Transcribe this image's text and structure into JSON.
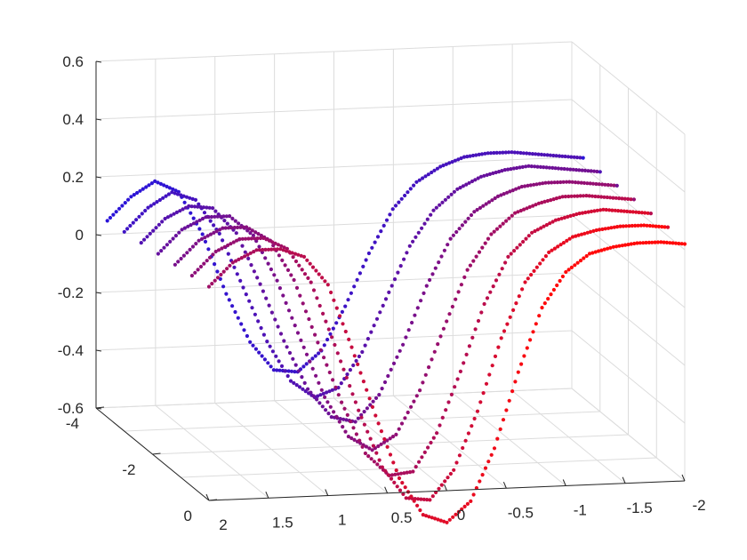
{
  "chart_data": {
    "type": "scatter3d",
    "title": "",
    "xlabel": "",
    "ylabel": "",
    "zlabel": "",
    "xlim": [
      -2,
      2
    ],
    "ylim": [
      -4,
      0
    ],
    "zlim": [
      -0.6,
      0.6
    ],
    "grid": true,
    "legend": "none",
    "colormap": {
      "start": "#2a14d8",
      "end": "#ff0a0a"
    },
    "x_ticks": [
      "2",
      "1.5",
      "1",
      "0.5",
      "0",
      "-0.5",
      "-1",
      "-1.5",
      "-2"
    ],
    "y_ticks": [
      "-4",
      "-2",
      "0"
    ],
    "z_ticks": [
      "0.6",
      "0.4",
      "0.2",
      "0",
      "-0.2",
      "-0.4",
      "-0.6"
    ],
    "series": [
      {
        "y": -3.6,
        "x": [
          2.0,
          1.8,
          1.6,
          1.4,
          1.2,
          1.0,
          0.8,
          0.6,
          0.4,
          0.2,
          0.0,
          -0.2,
          -0.4,
          -0.6,
          -0.8,
          -1.0,
          -1.2,
          -1.4,
          -1.6,
          -1.8,
          -2.0
        ],
        "z": [
          0.08,
          0.16,
          0.21,
          0.17,
          0.02,
          -0.19,
          -0.36,
          -0.46,
          -0.47,
          -0.4,
          -0.25,
          -0.07,
          0.08,
          0.17,
          0.22,
          0.25,
          0.26,
          0.26,
          0.25,
          0.24,
          0.23
        ]
      },
      {
        "y": -3.0,
        "x": [
          2.0,
          1.8,
          1.6,
          1.4,
          1.2,
          1.0,
          0.8,
          0.6,
          0.4,
          0.2,
          0.0,
          -0.2,
          -0.4,
          -0.6,
          -0.8,
          -1.0,
          -1.2,
          -1.4,
          -1.6,
          -1.8,
          -2.0
        ],
        "z": [
          0.09,
          0.17,
          0.22,
          0.19,
          0.07,
          -0.12,
          -0.31,
          -0.45,
          -0.51,
          -0.48,
          -0.36,
          -0.18,
          0.0,
          0.12,
          0.19,
          0.23,
          0.25,
          0.26,
          0.25,
          0.24,
          0.23
        ]
      },
      {
        "y": -2.4,
        "x": [
          2.0,
          1.8,
          1.6,
          1.4,
          1.2,
          1.0,
          0.8,
          0.6,
          0.4,
          0.2,
          0.0,
          -0.2,
          -0.4,
          -0.6,
          -0.8,
          -1.0,
          -1.2,
          -1.4,
          -1.6,
          -1.8,
          -2.0
        ],
        "z": [
          0.1,
          0.18,
          0.22,
          0.21,
          0.12,
          -0.06,
          -0.26,
          -0.43,
          -0.53,
          -0.55,
          -0.46,
          -0.29,
          -0.09,
          0.07,
          0.16,
          0.21,
          0.24,
          0.25,
          0.25,
          0.24,
          0.23
        ]
      },
      {
        "y": -1.8,
        "x": [
          2.0,
          1.8,
          1.6,
          1.4,
          1.2,
          1.0,
          0.8,
          0.6,
          0.4,
          0.2,
          0.0,
          -0.2,
          -0.4,
          -0.6,
          -0.8,
          -1.0,
          -1.2,
          -1.4,
          -1.6,
          -1.8,
          -2.0
        ],
        "z": [
          0.11,
          0.19,
          0.23,
          0.23,
          0.16,
          0.0,
          -0.21,
          -0.41,
          -0.55,
          -0.6,
          -0.55,
          -0.4,
          -0.19,
          0.01,
          0.13,
          0.2,
          0.23,
          0.25,
          0.25,
          0.24,
          0.23
        ]
      },
      {
        "y": -1.2,
        "x": [
          2.0,
          1.8,
          1.6,
          1.4,
          1.2,
          1.0,
          0.8,
          0.6,
          0.4,
          0.2,
          0.0,
          -0.2,
          -0.4,
          -0.6,
          -0.8,
          -1.0,
          -1.2,
          -1.4,
          -1.6,
          -1.8,
          -2.0
        ],
        "z": [
          0.12,
          0.2,
          0.24,
          0.24,
          0.19,
          0.05,
          -0.17,
          -0.38,
          -0.56,
          -0.64,
          -0.63,
          -0.5,
          -0.29,
          -0.06,
          0.1,
          0.18,
          0.22,
          0.24,
          0.25,
          0.24,
          0.23
        ]
      },
      {
        "y": -0.6,
        "x": [
          2.0,
          1.8,
          1.6,
          1.4,
          1.2,
          1.0,
          0.8,
          0.6,
          0.4,
          0.2,
          0.0,
          -0.2,
          -0.4,
          -0.6,
          -0.8,
          -1.0,
          -1.2,
          -1.4,
          -1.6,
          -1.8,
          -2.0
        ],
        "z": [
          0.13,
          0.21,
          0.25,
          0.25,
          0.21,
          0.09,
          -0.13,
          -0.36,
          -0.56,
          -0.67,
          -0.68,
          -0.58,
          -0.38,
          -0.13,
          0.06,
          0.16,
          0.21,
          0.23,
          0.24,
          0.24,
          0.23
        ]
      },
      {
        "y": 0.0,
        "x": [
          2.0,
          1.8,
          1.6,
          1.4,
          1.2,
          1.0,
          0.8,
          0.6,
          0.4,
          0.2,
          0.0,
          -0.2,
          -0.4,
          -0.6,
          -0.8,
          -1.0,
          -1.2,
          -1.4,
          -1.6,
          -1.8,
          -2.0
        ],
        "z": [
          0.14,
          0.22,
          0.26,
          0.26,
          0.23,
          0.13,
          -0.09,
          -0.33,
          -0.55,
          -0.68,
          -0.71,
          -0.64,
          -0.46,
          -0.2,
          0.02,
          0.14,
          0.2,
          0.22,
          0.23,
          0.23,
          0.22
        ]
      }
    ]
  }
}
